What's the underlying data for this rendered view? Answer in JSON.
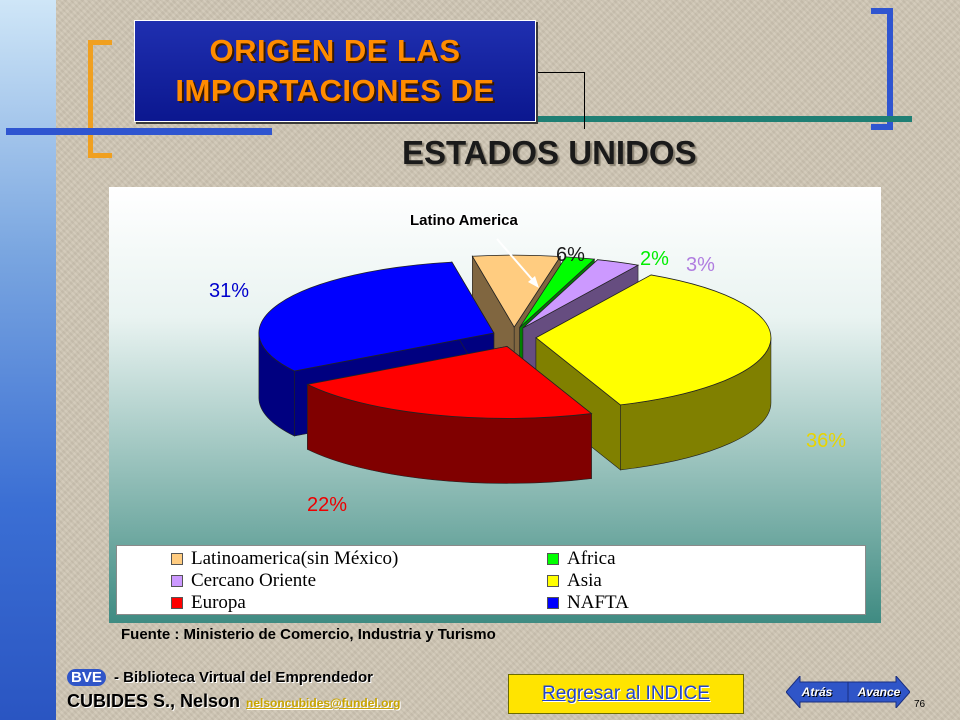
{
  "title": {
    "line1": "ORIGEN DE LAS",
    "line2": "IMPORTACIONES DE",
    "subtitle": "ESTADOS UNIDOS"
  },
  "chart_data": {
    "type": "pie",
    "title": "",
    "slices": [
      {
        "label": "Latinoamerica(sin México)",
        "value": 6,
        "pct_label": "6%",
        "color": "#ffcc80"
      },
      {
        "label": "Africa",
        "value": 2,
        "pct_label": "2%",
        "color": "#00ff00"
      },
      {
        "label": "Cercano Oriente",
        "value": 3,
        "pct_label": "3%",
        "color": "#cc99ff"
      },
      {
        "label": "Asia",
        "value": 36,
        "pct_label": "36%",
        "color": "#ffff00"
      },
      {
        "label": "Europa",
        "value": 22,
        "pct_label": "22%",
        "color": "#ff0000"
      },
      {
        "label": "NAFTA",
        "value": 31,
        "pct_label": "31%",
        "color": "#0000ff"
      }
    ],
    "callout": "Latino America",
    "legend_position": "bottom",
    "style": "3d-exploded"
  },
  "legend": {
    "items": [
      {
        "label": "Latinoamerica(sin México)",
        "color": "#ffcc80"
      },
      {
        "label": "Africa",
        "color": "#00ff00"
      },
      {
        "label": "Cercano Oriente",
        "color": "#cc99ff"
      },
      {
        "label": "Asia",
        "color": "#ffff00"
      },
      {
        "label": "Europa",
        "color": "#ff0000"
      },
      {
        "label": "NAFTA",
        "color": "#0000ff"
      }
    ]
  },
  "source": "Fuente : Ministerio de Comercio, Industria y Turismo",
  "footer": {
    "bve": "BVE",
    "bve_text": " - Biblioteca Virtual del Emprendedor",
    "author": "CUBIDES S., Nelson",
    "email": "nelsoncubides@fundel.org"
  },
  "buttons": {
    "index": "Regresar al INDICE",
    "back": "Atrás",
    "forward": "Avance"
  },
  "page_number": "76",
  "colors": {
    "title_bg": "#1a28a8",
    "title_text": "#ff8c00",
    "accent_blue": "#2f55c8",
    "index_btn": "#ffe400"
  }
}
